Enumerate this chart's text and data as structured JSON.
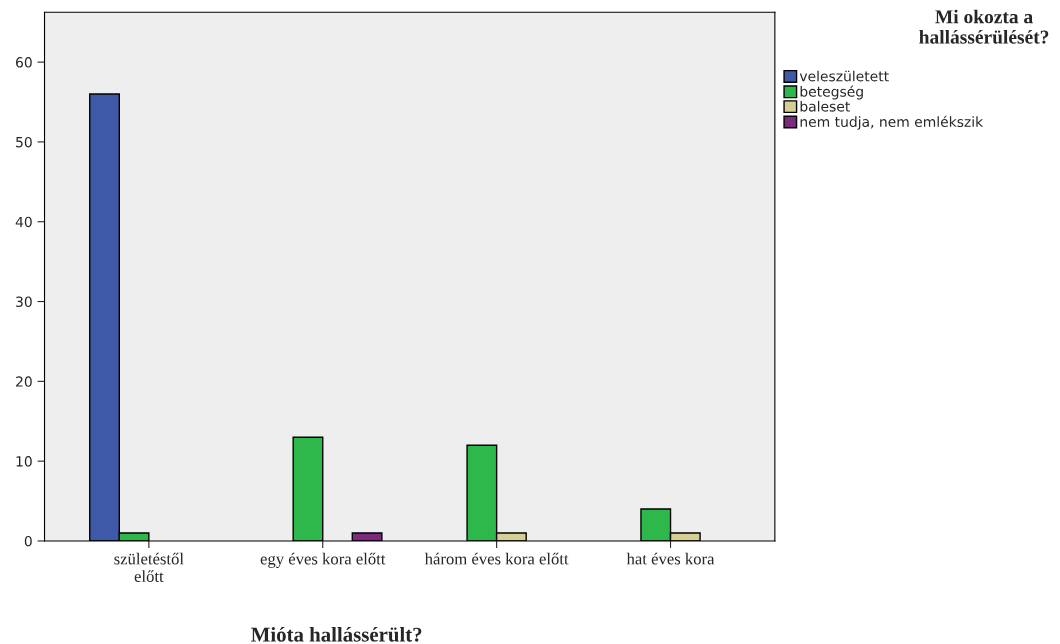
{
  "chart_data": {
    "type": "bar",
    "xlabel": "Mióta hallássérült?",
    "legend_title": "Mi okozta a\nhallássérülését?",
    "categories": [
      "születéstől\nelőtt",
      "egy éves kora előtt",
      "három éves kora előtt",
      "hat éves kora"
    ],
    "series": [
      {
        "name": "veleszületett",
        "color": "#3e59a8",
        "values": [
          56,
          null,
          null,
          null
        ]
      },
      {
        "name": "betegség",
        "color": "#2eb84b",
        "values": [
          1,
          13,
          12,
          4
        ]
      },
      {
        "name": "baleset",
        "color": "#d5cf93",
        "values": [
          null,
          null,
          1,
          1
        ]
      },
      {
        "name": "nem tudja, nem emlékszik",
        "color": "#7b2a7e",
        "values": [
          null,
          1,
          null,
          null
        ]
      }
    ],
    "ylim": [
      0,
      66.25
    ],
    "yticks": [
      0,
      10,
      20,
      30,
      40,
      50,
      60
    ],
    "grid": false,
    "legend": "right"
  }
}
